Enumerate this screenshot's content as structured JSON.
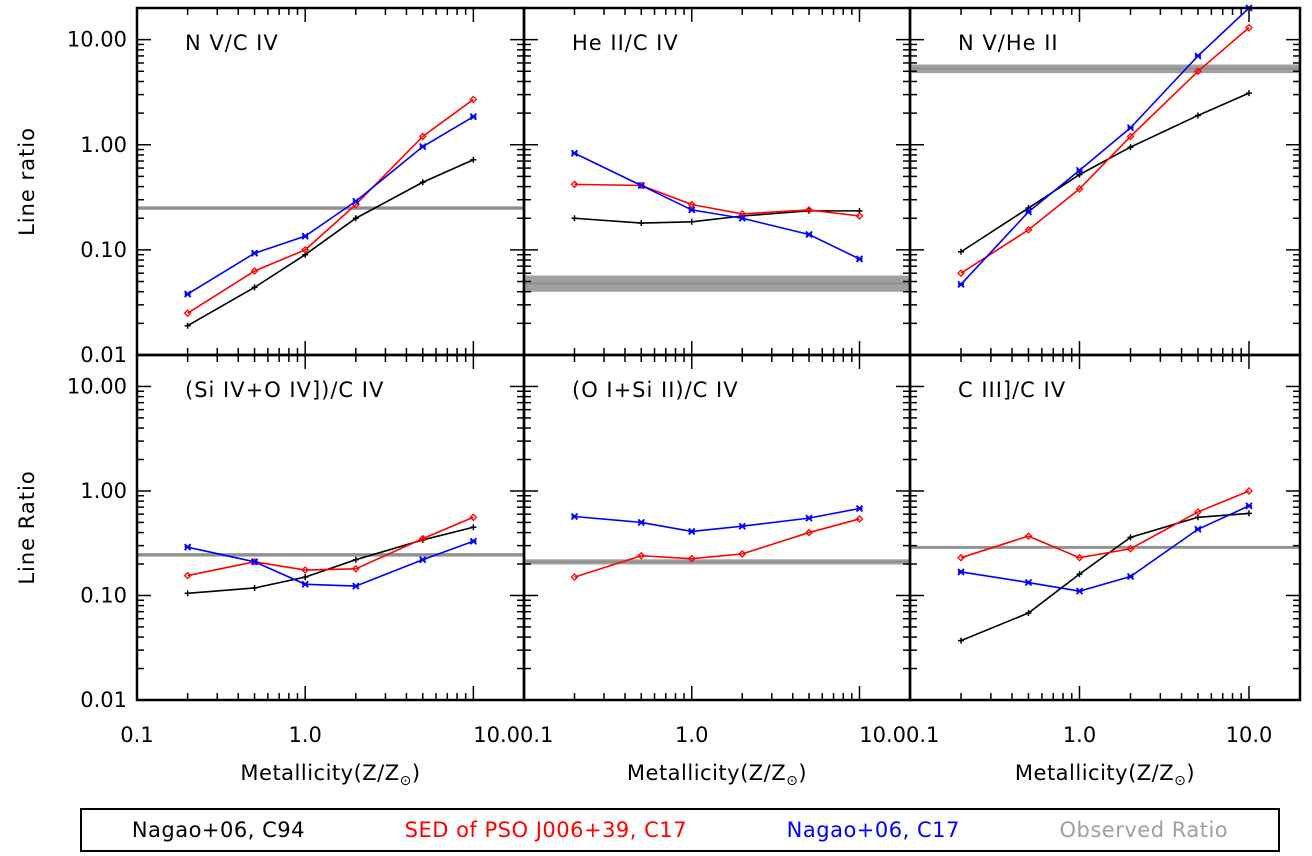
{
  "colors": {
    "c94": "#000000",
    "pso": "#ff0000",
    "c17": "#0000ff",
    "observed": "#a0a0a0"
  },
  "legend": [
    {
      "label": "Nagao+06, C94",
      "color": "#000000"
    },
    {
      "label": "SED of PSO J006+39, C17",
      "color": "#ff0000"
    },
    {
      "label": "Nagao+06, C17",
      "color": "#0000ff"
    },
    {
      "label": "Observed Ratio",
      "color": "#a0a0a0"
    }
  ],
  "chart_data": [
    {
      "type": "line",
      "title": "N V/C IV",
      "ylabel": "Line ratio",
      "xscale": "log",
      "yscale": "log",
      "xlim": [
        0.1,
        20
      ],
      "ylim": [
        0.01,
        20
      ],
      "x": [
        0.2,
        0.5,
        1.0,
        2.0,
        5.0,
        10.0
      ],
      "series": [
        {
          "name": "Nagao+06, C94",
          "color": "#000000",
          "marker": "+",
          "values": [
            0.019,
            0.044,
            0.09,
            0.2,
            0.44,
            0.72
          ]
        },
        {
          "name": "SED of PSO J006+39, C17",
          "color": "#ff0000",
          "marker": "diamond",
          "values": [
            0.025,
            0.063,
            0.1,
            0.27,
            1.2,
            2.7
          ]
        },
        {
          "name": "Nagao+06, C17",
          "color": "#0000ff",
          "marker": "x",
          "values": [
            0.038,
            0.093,
            0.135,
            0.29,
            0.96,
            1.85
          ]
        }
      ],
      "observed": {
        "value": 0.25,
        "band": [
          0.24,
          0.26
        ]
      }
    },
    {
      "type": "line",
      "title": "He II/C IV",
      "xscale": "log",
      "yscale": "log",
      "xlim": [
        0.1,
        20
      ],
      "ylim": [
        0.01,
        20
      ],
      "x": [
        0.2,
        0.5,
        1.0,
        2.0,
        5.0,
        10.0
      ],
      "series": [
        {
          "name": "Nagao+06, C94",
          "color": "#000000",
          "marker": "+",
          "values": [
            0.2,
            0.18,
            0.185,
            0.21,
            0.235,
            0.235
          ]
        },
        {
          "name": "SED of PSO J006+39, C17",
          "color": "#ff0000",
          "marker": "diamond",
          "values": [
            0.42,
            0.41,
            0.27,
            0.22,
            0.24,
            0.21
          ]
        },
        {
          "name": "Nagao+06, C17",
          "color": "#0000ff",
          "marker": "x",
          "values": [
            0.83,
            0.41,
            0.24,
            0.2,
            0.14,
            0.082
          ]
        }
      ],
      "observed": {
        "value": 0.048,
        "band": [
          0.04,
          0.057
        ]
      }
    },
    {
      "type": "line",
      "title": "N V/He II",
      "xscale": "log",
      "yscale": "log",
      "xlim": [
        0.1,
        20
      ],
      "ylim": [
        0.01,
        20
      ],
      "x": [
        0.2,
        0.5,
        1.0,
        2.0,
        5.0,
        10.0
      ],
      "series": [
        {
          "name": "Nagao+06, C94",
          "color": "#000000",
          "marker": "+",
          "values": [
            0.096,
            0.25,
            0.52,
            0.95,
            1.9,
            3.1
          ]
        },
        {
          "name": "SED of PSO J006+39, C17",
          "color": "#ff0000",
          "marker": "diamond",
          "values": [
            0.06,
            0.155,
            0.38,
            1.2,
            5.0,
            13.0
          ]
        },
        {
          "name": "Nagao+06, C17",
          "color": "#0000ff",
          "marker": "x",
          "values": [
            0.047,
            0.23,
            0.57,
            1.45,
            7.0,
            20.0
          ]
        }
      ],
      "observed": {
        "value": 5.3,
        "band": [
          4.8,
          5.8
        ]
      }
    },
    {
      "type": "line",
      "title": "(Si IV+O IV])/C IV",
      "ylabel": "Line Ratio",
      "xscale": "log",
      "yscale": "log",
      "xlim": [
        0.1,
        20
      ],
      "ylim": [
        0.01,
        20
      ],
      "x": [
        0.2,
        0.5,
        1.0,
        2.0,
        5.0,
        10.0
      ],
      "series": [
        {
          "name": "Nagao+06, C94",
          "color": "#000000",
          "marker": "+",
          "values": [
            0.105,
            0.118,
            0.15,
            0.22,
            0.34,
            0.45
          ]
        },
        {
          "name": "SED of PSO J006+39, C17",
          "color": "#ff0000",
          "marker": "diamond",
          "values": [
            0.155,
            0.21,
            0.175,
            0.18,
            0.35,
            0.56
          ]
        },
        {
          "name": "Nagao+06, C17",
          "color": "#0000ff",
          "marker": "x",
          "values": [
            0.29,
            0.21,
            0.128,
            0.123,
            0.22,
            0.33
          ]
        }
      ],
      "observed": {
        "value": 0.245,
        "band": [
          0.235,
          0.255
        ]
      }
    },
    {
      "type": "line",
      "title": "(O I+Si II)/C IV",
      "xscale": "log",
      "yscale": "log",
      "xlim": [
        0.1,
        20
      ],
      "ylim": [
        0.01,
        20
      ],
      "x": [
        0.2,
        0.5,
        1.0,
        2.0,
        5.0,
        10.0
      ],
      "series": [
        {
          "name": "SED of PSO J006+39, C17",
          "color": "#ff0000",
          "marker": "diamond",
          "values": [
            0.15,
            0.24,
            0.225,
            0.25,
            0.4,
            0.54
          ]
        },
        {
          "name": "Nagao+06, C17",
          "color": "#0000ff",
          "marker": "x",
          "values": [
            0.57,
            0.5,
            0.41,
            0.46,
            0.55,
            0.68
          ]
        }
      ],
      "observed": {
        "value": 0.21,
        "band": [
          0.198,
          0.222
        ]
      }
    },
    {
      "type": "line",
      "title": "C III]/C IV",
      "xscale": "log",
      "yscale": "log",
      "xlim": [
        0.1,
        20
      ],
      "ylim": [
        0.01,
        20
      ],
      "x": [
        0.2,
        0.5,
        1.0,
        2.0,
        5.0,
        10.0
      ],
      "series": [
        {
          "name": "Nagao+06, C94",
          "color": "#000000",
          "marker": "+",
          "values": [
            0.037,
            0.068,
            0.16,
            0.36,
            0.56,
            0.61
          ]
        },
        {
          "name": "SED of PSO J006+39, C17",
          "color": "#ff0000",
          "marker": "diamond",
          "values": [
            0.23,
            0.37,
            0.23,
            0.28,
            0.63,
            1.0
          ]
        },
        {
          "name": "Nagao+06, C17",
          "color": "#0000ff",
          "marker": "x",
          "values": [
            0.168,
            0.133,
            0.11,
            0.152,
            0.43,
            0.72
          ]
        }
      ],
      "observed": {
        "value": 0.29,
        "band": [
          0.282,
          0.298
        ]
      }
    }
  ],
  "axes": {
    "xticklabels_panels_1_2": [
      "0.1",
      "1.0",
      "10.0"
    ],
    "xticklabels_panel_3": [
      "0.1",
      "1.0",
      "10.0"
    ],
    "yticklabels": [
      "0.01",
      "0.10",
      "1.00",
      "10.00"
    ],
    "xlabel": "Metallicity(Z/Z",
    "xlabel_sub": "⊙",
    "xlabel_close": ")"
  }
}
